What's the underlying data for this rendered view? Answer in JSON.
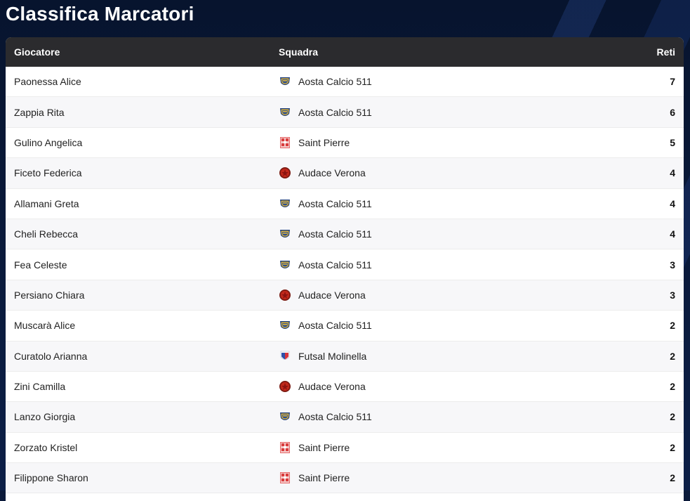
{
  "page": {
    "title": "Classifica Marcatori"
  },
  "table": {
    "headers": {
      "player": "Giocatore",
      "team": "Squadra",
      "goals": "Reti"
    },
    "rows": [
      {
        "player": "Paonessa Alice",
        "team": "Aosta Calcio 511",
        "logo": "aosta",
        "goals": "7"
      },
      {
        "player": "Zappia Rita",
        "team": "Aosta Calcio 511",
        "logo": "aosta",
        "goals": "6"
      },
      {
        "player": "Gulino Angelica",
        "team": "Saint Pierre",
        "logo": "saintpierre",
        "goals": "5"
      },
      {
        "player": "Ficeto Federica",
        "team": "Audace Verona",
        "logo": "verona",
        "goals": "4"
      },
      {
        "player": "Allamani Greta",
        "team": "Aosta Calcio 511",
        "logo": "aosta",
        "goals": "4"
      },
      {
        "player": "Cheli Rebecca",
        "team": "Aosta Calcio 511",
        "logo": "aosta",
        "goals": "4"
      },
      {
        "player": "Fea Celeste",
        "team": "Aosta Calcio 511",
        "logo": "aosta",
        "goals": "3"
      },
      {
        "player": "Persiano Chiara",
        "team": "Audace Verona",
        "logo": "verona",
        "goals": "3"
      },
      {
        "player": "Muscarà Alice",
        "team": "Aosta Calcio 511",
        "logo": "aosta",
        "goals": "2"
      },
      {
        "player": "Curatolo Arianna",
        "team": "Futsal Molinella",
        "logo": "molinella",
        "goals": "2"
      },
      {
        "player": "Zini Camilla",
        "team": "Audace Verona",
        "logo": "verona",
        "goals": "2"
      },
      {
        "player": "Lanzo Giorgia",
        "team": "Aosta Calcio 511",
        "logo": "aosta",
        "goals": "2"
      },
      {
        "player": "Zorzato Kristel",
        "team": "Saint Pierre",
        "logo": "saintpierre",
        "goals": "2"
      },
      {
        "player": "Filippone Sharon",
        "team": "Saint Pierre",
        "logo": "saintpierre",
        "goals": "2"
      }
    ]
  },
  "logo_icons": {
    "aosta": "aosta-calcio-511-crest-icon",
    "saintpierre": "saint-pierre-crest-icon",
    "verona": "audace-verona-crest-icon",
    "molinella": "futsal-molinella-crest-icon"
  },
  "colors": {
    "header_bg": "#2b2b2e",
    "page_bg": "#0b1a3a"
  }
}
